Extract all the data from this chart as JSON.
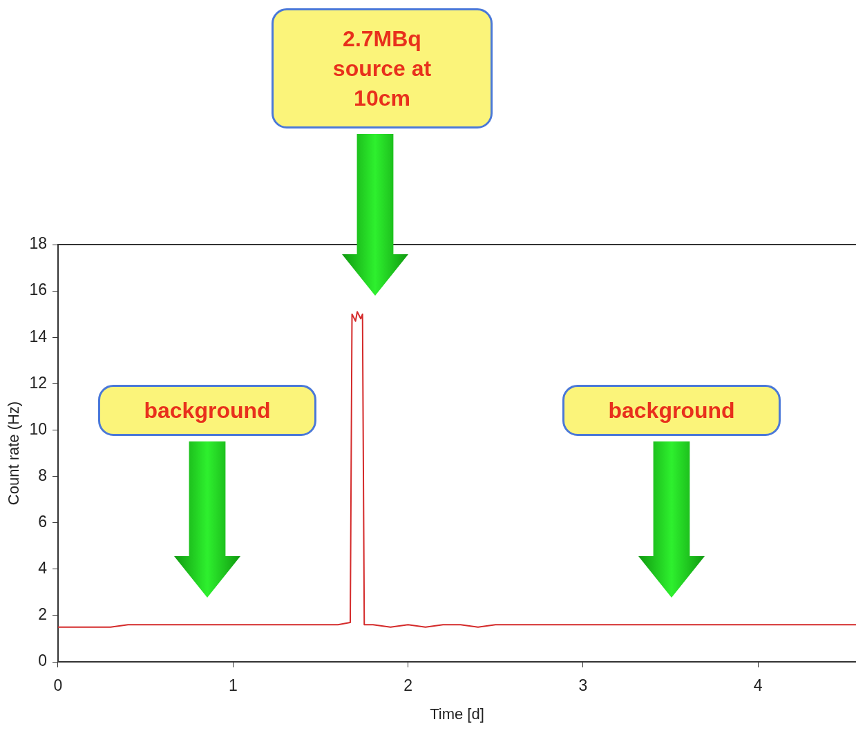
{
  "chart_data": {
    "type": "line",
    "xlabel": "Time [d]",
    "ylabel": "Count rate (Hz)",
    "xlim": [
      0,
      4.56
    ],
    "xticks": [
      0,
      1,
      2,
      3,
      4
    ],
    "ylim": [
      0,
      18
    ],
    "yticks": [
      0,
      2,
      4,
      6,
      8,
      10,
      12,
      14,
      16,
      18
    ],
    "grid": false,
    "legend": false,
    "marker": "none",
    "line_style": "solid",
    "series": [
      {
        "color": "#d42a2a",
        "x": [
          0,
          0.1,
          0.2,
          0.3,
          0.4,
          0.5,
          0.6,
          0.7,
          0.8,
          0.9,
          1.0,
          1.1,
          1.2,
          1.3,
          1.4,
          1.5,
          1.6,
          1.67,
          1.68,
          1.7,
          1.71,
          1.73,
          1.74,
          1.75,
          1.76,
          1.8,
          1.9,
          2.0,
          2.1,
          2.2,
          2.3,
          2.4,
          2.5,
          2.6,
          2.7,
          2.8,
          2.9,
          3.0,
          3.1,
          3.2,
          3.3,
          3.4,
          3.5,
          3.6,
          3.7,
          3.8,
          3.9,
          4.0,
          4.1,
          4.2,
          4.3,
          4.4,
          4.5,
          4.56
        ],
        "values": [
          1.5,
          1.5,
          1.5,
          1.5,
          1.6,
          1.6,
          1.6,
          1.6,
          1.6,
          1.6,
          1.6,
          1.6,
          1.6,
          1.6,
          1.6,
          1.6,
          1.6,
          1.7,
          15.0,
          14.7,
          15.1,
          14.8,
          15.0,
          1.6,
          1.6,
          1.6,
          1.5,
          1.6,
          1.5,
          1.6,
          1.6,
          1.5,
          1.6,
          1.6,
          1.6,
          1.6,
          1.6,
          1.6,
          1.6,
          1.6,
          1.6,
          1.6,
          1.6,
          1.6,
          1.6,
          1.6,
          1.6,
          1.6,
          1.6,
          1.6,
          1.6,
          1.6,
          1.6,
          1.6
        ]
      }
    ],
    "annotations": [
      "2.7MBq source at 10cm",
      "background",
      "background"
    ]
  }
}
